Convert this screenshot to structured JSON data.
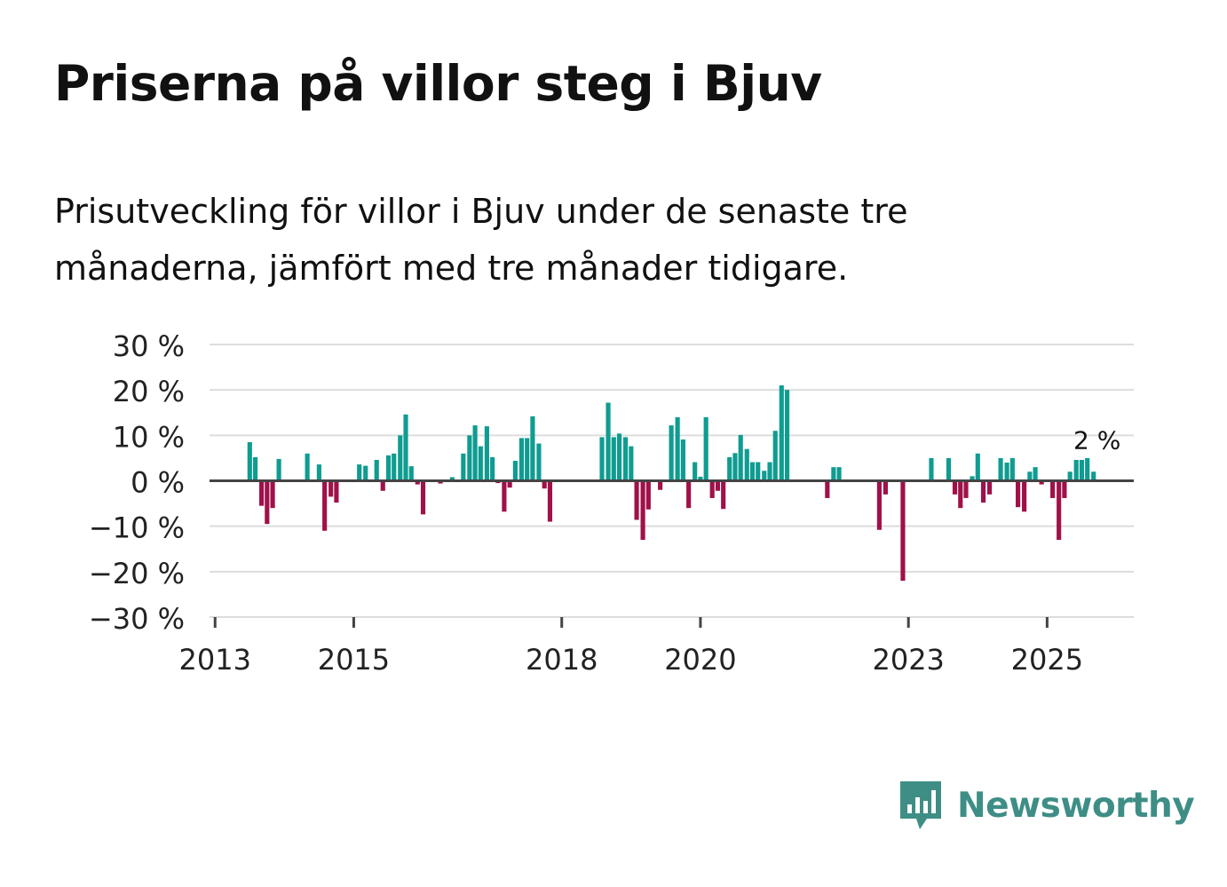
{
  "title": "Priserna på villor steg i Bjuv",
  "subtitle": "Prisutveckling för villor i Bjuv under de senaste tre månaderna, jämfört med tre månader tidigare.",
  "brand": {
    "name": "Newsworthy",
    "logo_icon": "bar-chart-speech-bubble-icon",
    "color": "#3e8e86"
  },
  "colors": {
    "positive": "#0f9c91",
    "negative": "#a0114a",
    "grid": "#dddddd",
    "zero_line": "#444444",
    "axis_text": "#222222"
  },
  "chart_data": {
    "type": "bar",
    "title": "Priserna på villor steg i Bjuv",
    "xlabel": "",
    "ylabel": "",
    "ylim": [
      -30,
      30
    ],
    "yticks": [
      30,
      20,
      10,
      0,
      -10,
      -20,
      -30
    ],
    "ytick_labels": [
      "30 %",
      "20 %",
      "10 %",
      "0 %",
      "−10 %",
      "−20 %",
      "−30 %"
    ],
    "xticks": [
      2013,
      2015,
      2018,
      2020,
      2023,
      2025
    ],
    "xtick_labels": [
      "2013",
      "2015",
      "2018",
      "2020",
      "2023",
      "2025"
    ],
    "xlim": [
      2012.92,
      2026.25
    ],
    "bar_width_years": 0.066,
    "last_value_label": "2 %",
    "series": [
      {
        "name": "Prisutveckling",
        "points": [
          {
            "x": 2013.5,
            "v": 8.5
          },
          {
            "x": 2013.58,
            "v": 5.2
          },
          {
            "x": 2013.67,
            "v": -5.5
          },
          {
            "x": 2013.75,
            "v": -9.5
          },
          {
            "x": 2013.83,
            "v": -6
          },
          {
            "x": 2013.92,
            "v": 4.8
          },
          {
            "x": 2014.33,
            "v": 6
          },
          {
            "x": 2014.5,
            "v": 3.6
          },
          {
            "x": 2014.58,
            "v": -11
          },
          {
            "x": 2014.67,
            "v": -3.5
          },
          {
            "x": 2014.75,
            "v": -4.8
          },
          {
            "x": 2015.08,
            "v": 3.6
          },
          {
            "x": 2015.17,
            "v": 3.3
          },
          {
            "x": 2015.33,
            "v": 4.6
          },
          {
            "x": 2015.42,
            "v": -2.2
          },
          {
            "x": 2015.5,
            "v": 5.6
          },
          {
            "x": 2015.58,
            "v": 6
          },
          {
            "x": 2015.67,
            "v": 10
          },
          {
            "x": 2015.75,
            "v": 14.6
          },
          {
            "x": 2015.83,
            "v": 3.2
          },
          {
            "x": 2015.92,
            "v": -0.8
          },
          {
            "x": 2016.0,
            "v": -7.4
          },
          {
            "x": 2016.25,
            "v": -0.6
          },
          {
            "x": 2016.42,
            "v": 0.8
          },
          {
            "x": 2016.58,
            "v": 6
          },
          {
            "x": 2016.67,
            "v": 10
          },
          {
            "x": 2016.75,
            "v": 12.2
          },
          {
            "x": 2016.83,
            "v": 7.6
          },
          {
            "x": 2016.92,
            "v": 12
          },
          {
            "x": 2017.0,
            "v": 5.2
          },
          {
            "x": 2017.08,
            "v": -0.5
          },
          {
            "x": 2017.17,
            "v": -6.8
          },
          {
            "x": 2017.25,
            "v": -1.5
          },
          {
            "x": 2017.33,
            "v": 4.4
          },
          {
            "x": 2017.42,
            "v": 9.4
          },
          {
            "x": 2017.5,
            "v": 9.4
          },
          {
            "x": 2017.58,
            "v": 14.2
          },
          {
            "x": 2017.67,
            "v": 8.2
          },
          {
            "x": 2017.75,
            "v": -1.7
          },
          {
            "x": 2017.83,
            "v": -9
          },
          {
            "x": 2018.58,
            "v": 9.6
          },
          {
            "x": 2018.67,
            "v": 17.2
          },
          {
            "x": 2018.75,
            "v": 9.6
          },
          {
            "x": 2018.83,
            "v": 10.4
          },
          {
            "x": 2018.92,
            "v": 9.6
          },
          {
            "x": 2019.0,
            "v": 7.6
          },
          {
            "x": 2019.08,
            "v": -8.6
          },
          {
            "x": 2019.17,
            "v": -13
          },
          {
            "x": 2019.25,
            "v": -6.3
          },
          {
            "x": 2019.42,
            "v": -2
          },
          {
            "x": 2019.58,
            "v": 12.2
          },
          {
            "x": 2019.67,
            "v": 14
          },
          {
            "x": 2019.75,
            "v": 9.1
          },
          {
            "x": 2019.83,
            "v": -6
          },
          {
            "x": 2019.92,
            "v": 4.1
          },
          {
            "x": 2020.0,
            "v": 0.9
          },
          {
            "x": 2020.08,
            "v": 14
          },
          {
            "x": 2020.17,
            "v": -3.8
          },
          {
            "x": 2020.25,
            "v": -2.2
          },
          {
            "x": 2020.33,
            "v": -6.2
          },
          {
            "x": 2020.42,
            "v": 5.2
          },
          {
            "x": 2020.5,
            "v": 6.1
          },
          {
            "x": 2020.58,
            "v": 10.1
          },
          {
            "x": 2020.67,
            "v": 7
          },
          {
            "x": 2020.75,
            "v": 4.1
          },
          {
            "x": 2020.83,
            "v": 4.1
          },
          {
            "x": 2020.92,
            "v": 2.2
          },
          {
            "x": 2021.0,
            "v": 4.1
          },
          {
            "x": 2021.08,
            "v": 11
          },
          {
            "x": 2021.17,
            "v": 21
          },
          {
            "x": 2021.25,
            "v": 20
          },
          {
            "x": 2021.83,
            "v": -3.8
          },
          {
            "x": 2021.92,
            "v": 3
          },
          {
            "x": 2022.0,
            "v": 3
          },
          {
            "x": 2022.58,
            "v": -10.8
          },
          {
            "x": 2022.67,
            "v": -3
          },
          {
            "x": 2022.92,
            "v": -22
          },
          {
            "x": 2023.33,
            "v": 5
          },
          {
            "x": 2023.58,
            "v": 5
          },
          {
            "x": 2023.67,
            "v": -3
          },
          {
            "x": 2023.75,
            "v": -6
          },
          {
            "x": 2023.83,
            "v": -3.8
          },
          {
            "x": 2023.92,
            "v": 1
          },
          {
            "x": 2024.0,
            "v": 6
          },
          {
            "x": 2024.08,
            "v": -4.8
          },
          {
            "x": 2024.17,
            "v": -3
          },
          {
            "x": 2024.33,
            "v": 5
          },
          {
            "x": 2024.42,
            "v": 4
          },
          {
            "x": 2024.5,
            "v": 5
          },
          {
            "x": 2024.58,
            "v": -5.8
          },
          {
            "x": 2024.67,
            "v": -6.8
          },
          {
            "x": 2024.75,
            "v": 2
          },
          {
            "x": 2024.83,
            "v": 3
          },
          {
            "x": 2024.92,
            "v": -0.8
          },
          {
            "x": 2025.08,
            "v": -3.8
          },
          {
            "x": 2025.17,
            "v": -13
          },
          {
            "x": 2025.25,
            "v": -3.8
          },
          {
            "x": 2025.33,
            "v": 2
          },
          {
            "x": 2025.42,
            "v": 4.6
          },
          {
            "x": 2025.5,
            "v": 4.6
          },
          {
            "x": 2025.58,
            "v": 5
          },
          {
            "x": 2025.67,
            "v": 2
          }
        ]
      }
    ]
  }
}
